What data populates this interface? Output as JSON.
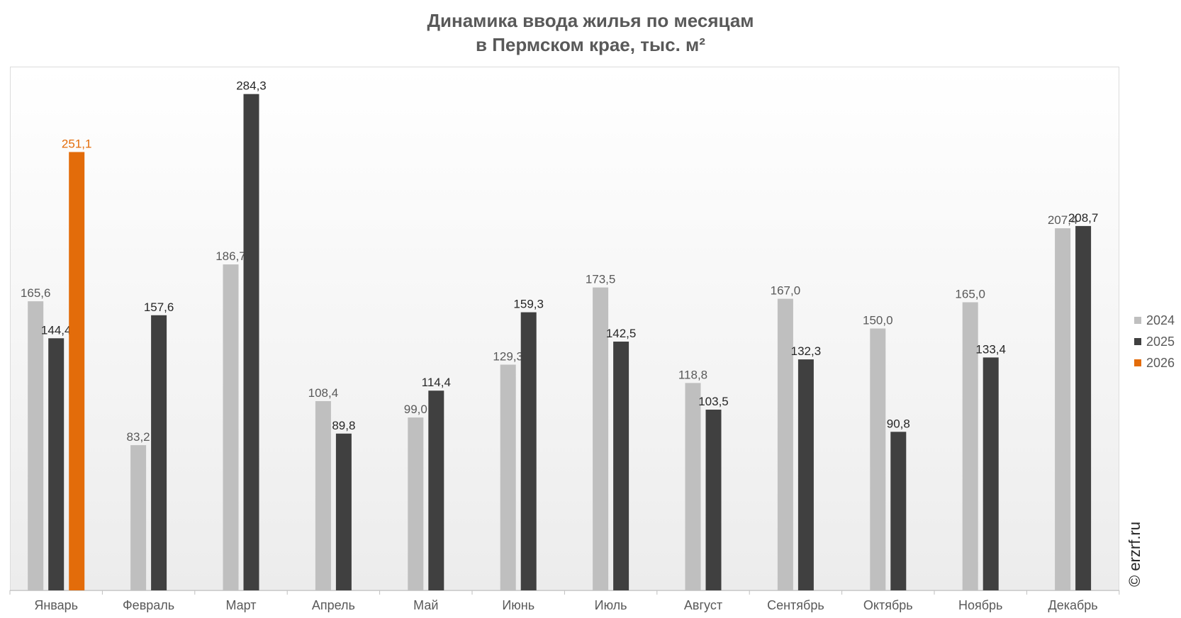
{
  "chart_data": {
    "type": "bar",
    "title_line1": "Динамика ввода жилья по месяцам",
    "title_line2": "в Пермском крае, тыс. м²",
    "categories": [
      "Январь",
      "Февраль",
      "Март",
      "Апрель",
      "Май",
      "Июнь",
      "Июль",
      "Август",
      "Сентябрь",
      "Октябрь",
      "Ноябрь",
      "Декабрь"
    ],
    "series": [
      {
        "name": "2024",
        "color": "#bfbfbf",
        "label_color": "#595959",
        "values": [
          165.6,
          83.2,
          186.7,
          108.4,
          99.0,
          129.3,
          173.5,
          118.8,
          167.0,
          150.0,
          165.0,
          207.4
        ],
        "labels": [
          "165,6",
          "83,2",
          "186,7",
          "108,4",
          "99,0",
          "129,3",
          "173,5",
          "118,8",
          "167,0",
          "150,0",
          "165,0",
          "207,4"
        ]
      },
      {
        "name": "2025",
        "color": "#404040",
        "label_color": "#262626",
        "values": [
          144.4,
          157.6,
          284.3,
          89.8,
          114.4,
          159.3,
          142.5,
          103.5,
          132.3,
          90.8,
          133.4,
          208.7
        ],
        "labels": [
          "144,4",
          "157,6",
          "284,3",
          "89,8",
          "114,4",
          "159,3",
          "142,5",
          "103,5",
          "132,3",
          "90,8",
          "133,4",
          "208,7"
        ]
      },
      {
        "name": "2026",
        "color": "#e36c0a",
        "label_color": "#e36c0a",
        "values": [
          251.1,
          null,
          null,
          null,
          null,
          null,
          null,
          null,
          null,
          null,
          null,
          null
        ],
        "labels": [
          "251,1",
          "",
          "",
          "",
          "",
          "",
          "",
          "",
          "",
          "",
          "",
          ""
        ]
      }
    ],
    "legend_position": "right",
    "grid": false,
    "ylim": [
      0,
      300
    ]
  },
  "watermark": "© erzrf.ru"
}
